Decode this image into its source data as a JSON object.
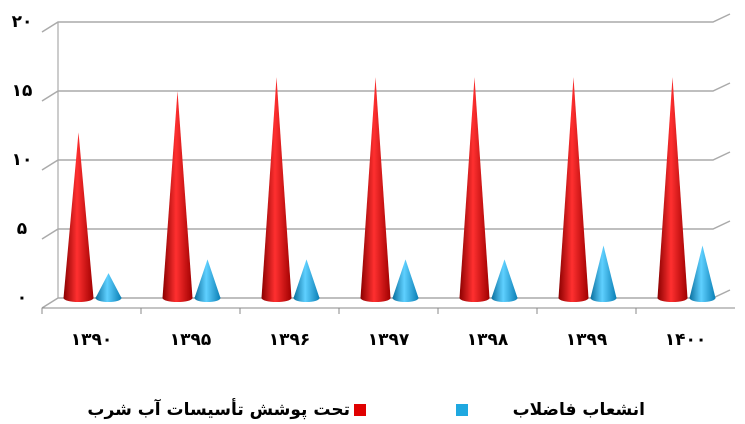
{
  "chart_data": {
    "type": "cone",
    "categories": [
      "۱۳۹۰",
      "۱۳۹۵",
      "۱۳۹۶",
      "۱۳۹۷",
      "۱۳۹۸",
      "۱۳۹۹",
      "۱۴۰۰"
    ],
    "series": [
      {
        "name": "تحت پوشش تأسیسات آب شرب",
        "color": "#e00000",
        "values": [
          12,
          15,
          16,
          16,
          16,
          16,
          16
        ]
      },
      {
        "name": "انشعاب فاضلاب",
        "color": "#1fa8e0",
        "values": [
          1.8,
          2.8,
          2.8,
          2.8,
          2.8,
          3.8,
          3.8
        ]
      }
    ],
    "ylim": [
      0,
      20
    ],
    "yticks": [
      {
        "value": 0,
        "label": "۰"
      },
      {
        "value": 5,
        "label": "۵"
      },
      {
        "value": 10,
        "label": "۱۰"
      },
      {
        "value": 15,
        "label": "۱۵"
      },
      {
        "value": 20,
        "label": "۲۰"
      }
    ],
    "grid": true,
    "legend": "bottom"
  }
}
